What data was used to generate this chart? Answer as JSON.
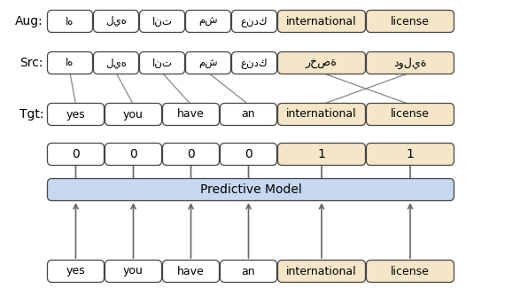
{
  "bg_color": "#ffffff",
  "box_white": "#ffffff",
  "box_yellow": "#f5e6c8",
  "box_blue": "#c5d8f0",
  "border_color": "#444444",
  "text_color": "#000000",
  "arrow_color": "#666666",
  "aug_tokens": [
    "اه",
    "ليه",
    "انت",
    "مش",
    "عندك",
    "international",
    "license"
  ],
  "aug_yellow": [
    false,
    false,
    false,
    false,
    false,
    true,
    true
  ],
  "src_tokens": [
    "اه",
    "ليه",
    "انت",
    "مش",
    "عندك",
    "رخصة",
    "دولية"
  ],
  "src_yellow": [
    false,
    false,
    false,
    false,
    false,
    true,
    true
  ],
  "tgt_tokens": [
    "yes",
    "you",
    "have",
    "an",
    "international",
    "license"
  ],
  "tgt_yellow": [
    false,
    false,
    false,
    false,
    true,
    true
  ],
  "label_tokens": [
    "0",
    "0",
    "0",
    "0",
    "1",
    "1"
  ],
  "label_yellow": [
    false,
    false,
    false,
    false,
    true,
    true
  ],
  "model_label": "Predictive Model",
  "input_tokens": [
    "yes",
    "you",
    "have",
    "an",
    "international",
    "license"
  ],
  "input_yellow": [
    false,
    false,
    false,
    false,
    true,
    true
  ]
}
